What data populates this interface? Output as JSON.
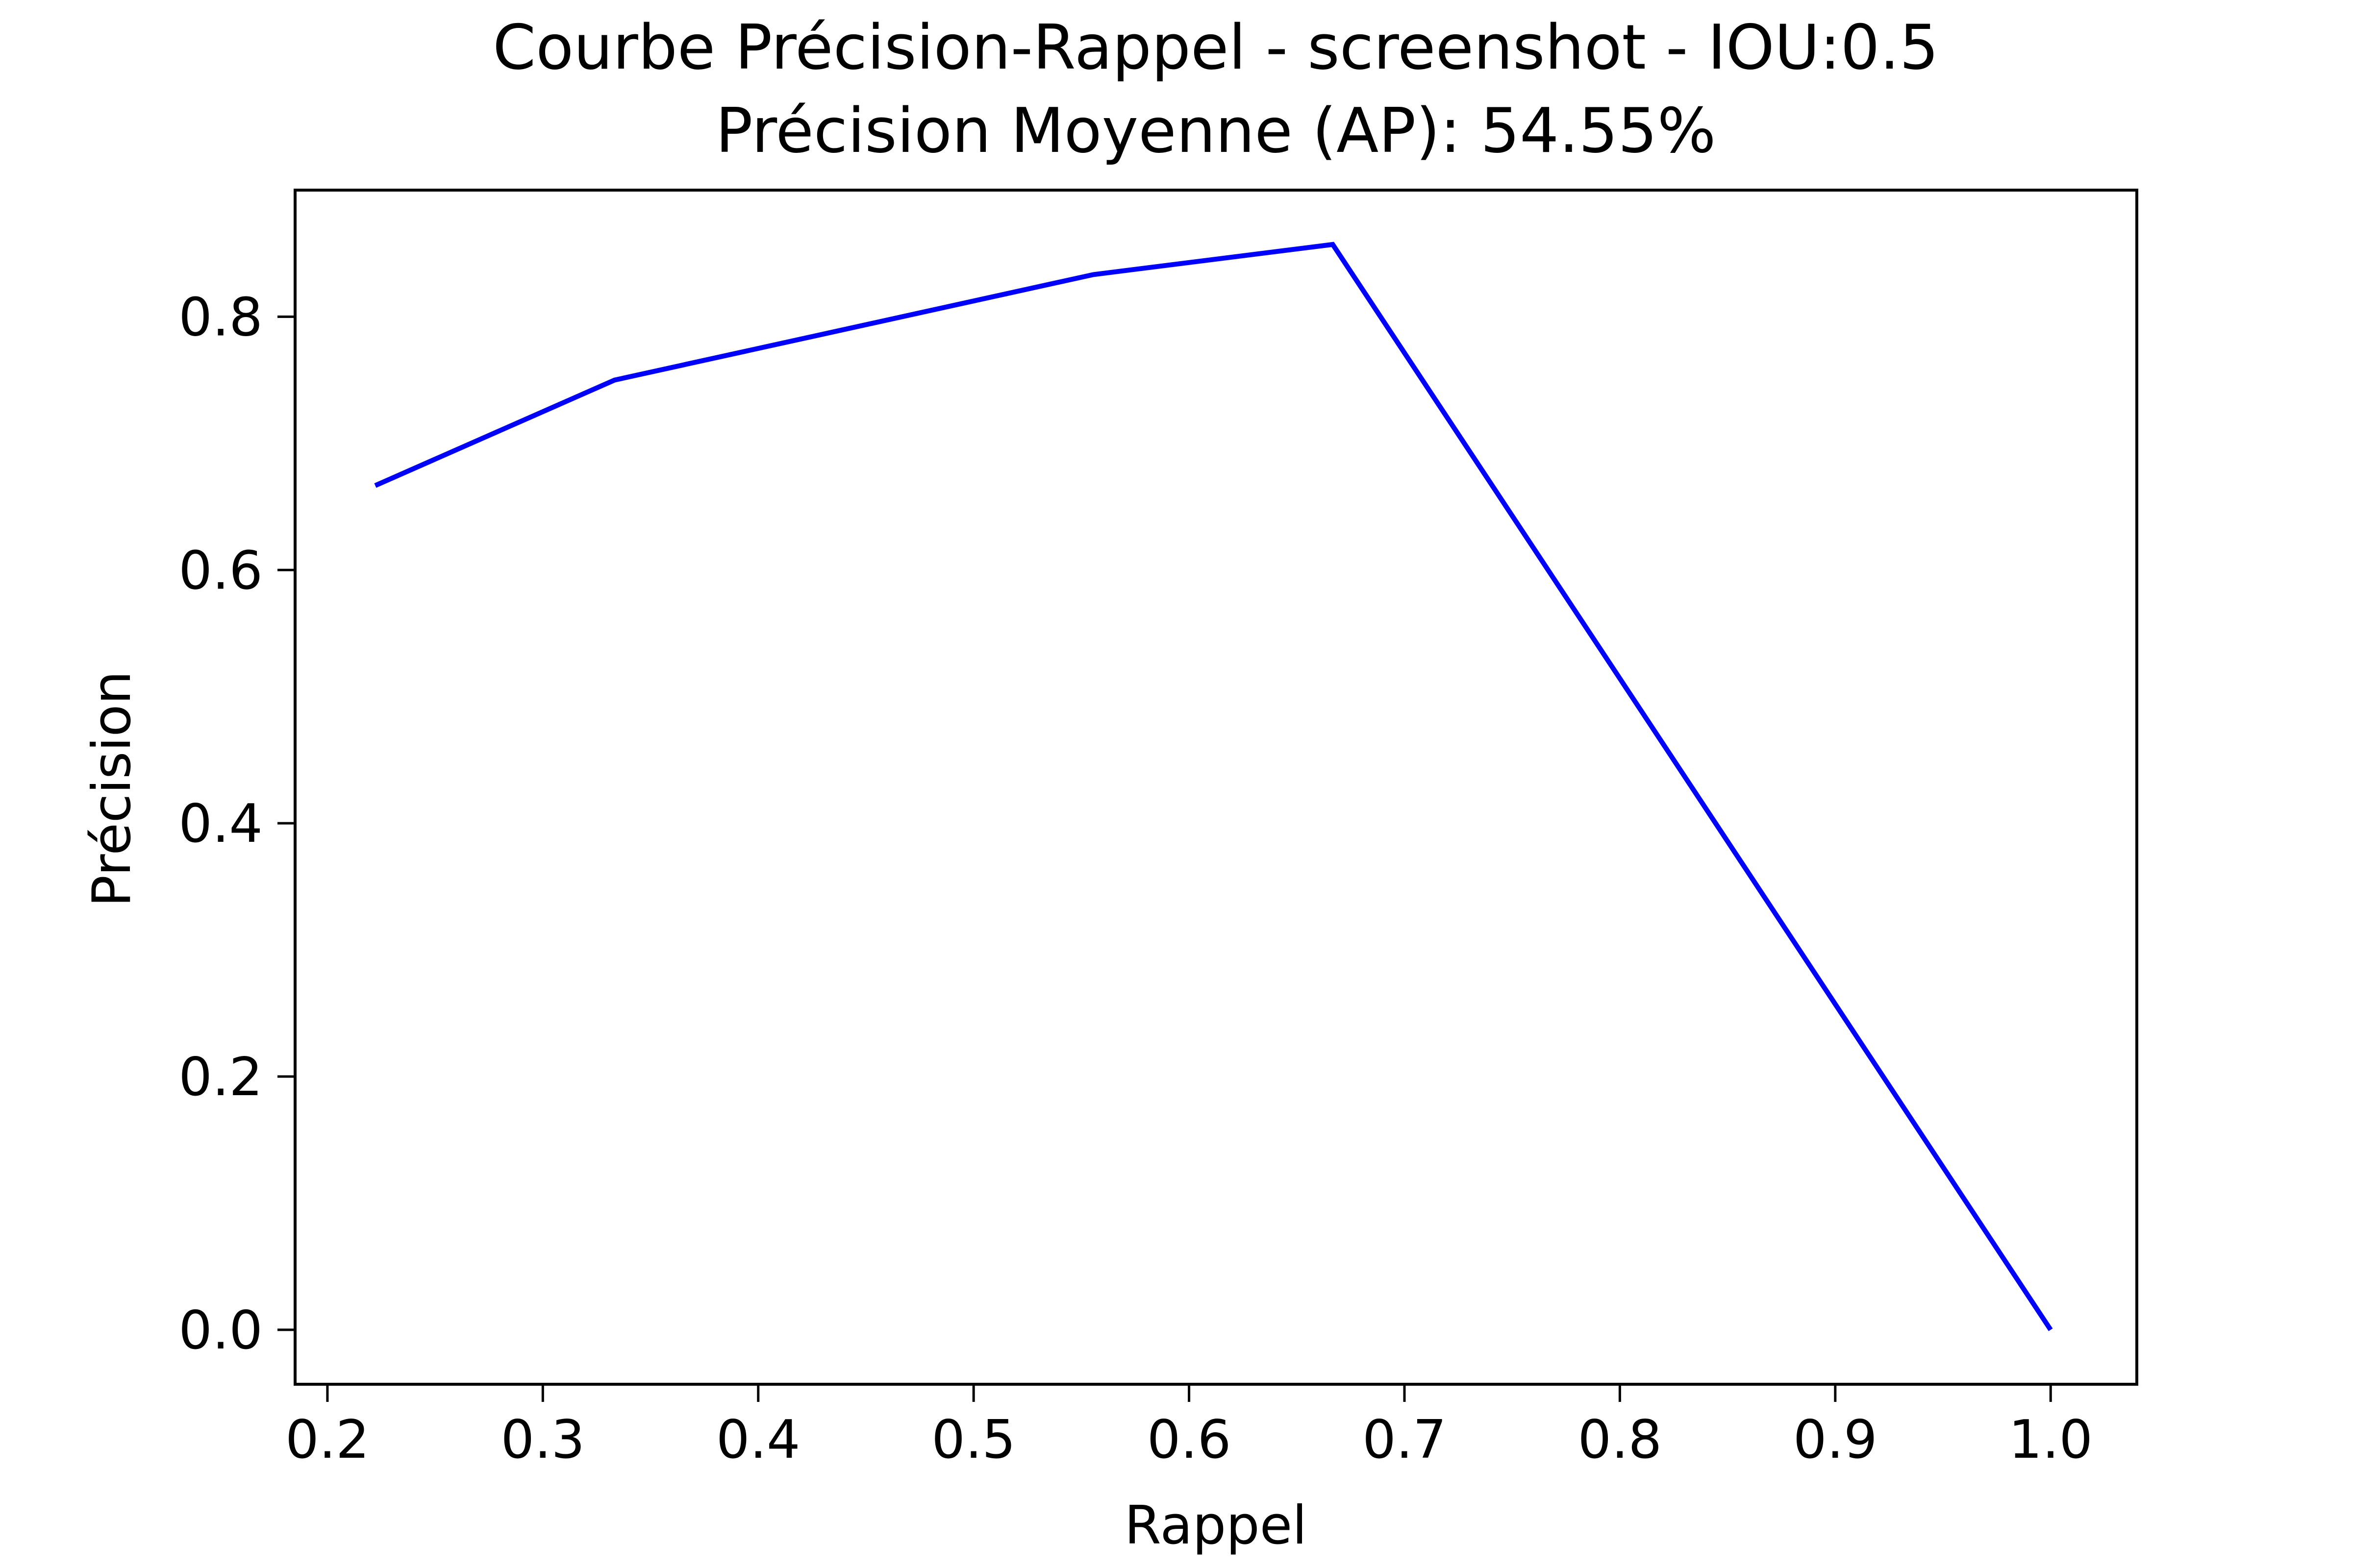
{
  "chart_data": {
    "type": "line",
    "title": "Courbe Précision-Rappel - screenshot - IOU:0.5",
    "subtitle": "Précision Moyenne (AP): 54.55%",
    "xlabel": "Rappel",
    "ylabel": "Précision",
    "xlim": [
      0.185,
      1.04
    ],
    "ylim": [
      -0.043,
      0.9
    ],
    "x_ticks": [
      "0.2",
      "0.3",
      "0.4",
      "0.5",
      "0.6",
      "0.7",
      "0.8",
      "0.9",
      "1.0"
    ],
    "y_ticks": [
      "0.0",
      "0.2",
      "0.4",
      "0.6",
      "0.8"
    ],
    "grid": false,
    "series": [
      {
        "color": "#0000ff",
        "x": [
          0.2222,
          0.3333,
          0.5556,
          0.6667,
          1.0
        ],
        "y": [
          0.6667,
          0.75,
          0.8333,
          0.8571,
          0.0
        ]
      }
    ]
  }
}
